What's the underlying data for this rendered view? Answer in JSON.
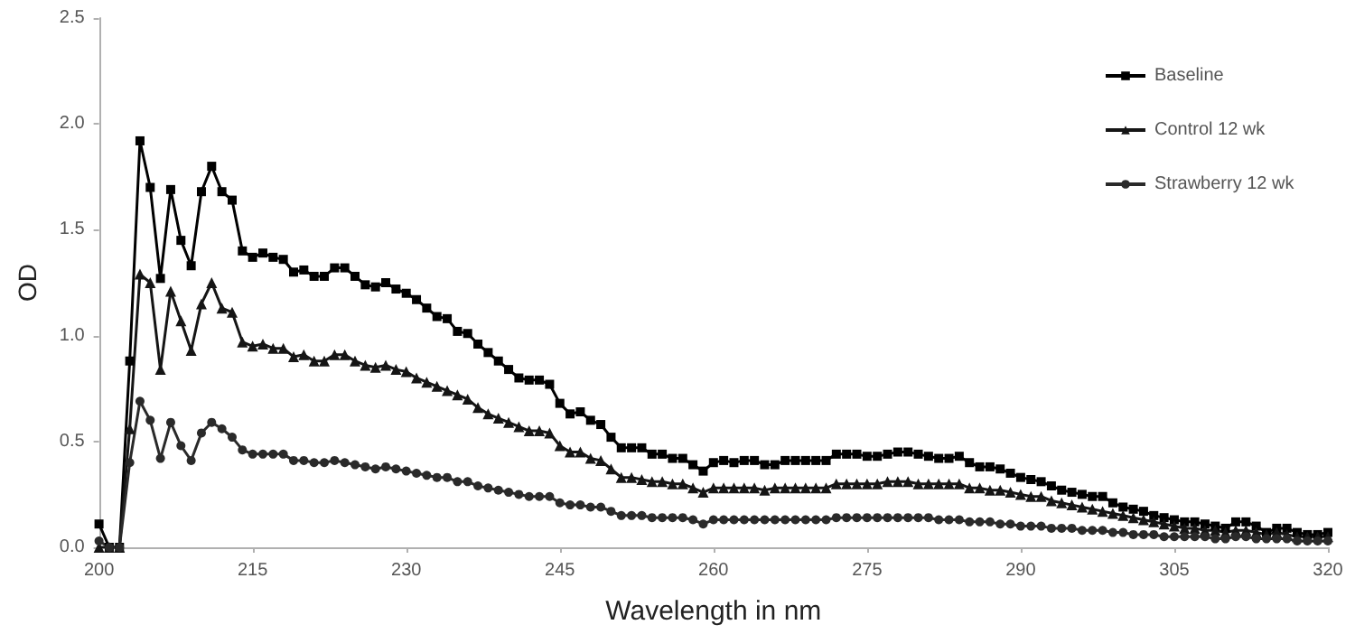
{
  "chart_data": {
    "type": "line",
    "xlabel": "Wavelength in nm",
    "ylabel": "OD",
    "x": [
      200,
      201,
      202,
      203,
      204,
      205,
      206,
      207,
      208,
      209,
      210,
      211,
      212,
      213,
      214,
      215,
      216,
      217,
      218,
      219,
      220,
      221,
      222,
      223,
      224,
      225,
      226,
      227,
      228,
      229,
      230,
      231,
      232,
      233,
      234,
      235,
      236,
      237,
      238,
      239,
      240,
      241,
      242,
      243,
      244,
      245,
      246,
      247,
      248,
      249,
      250,
      251,
      252,
      253,
      254,
      255,
      256,
      257,
      258,
      259,
      260,
      261,
      262,
      263,
      264,
      265,
      266,
      267,
      268,
      269,
      270,
      271,
      272,
      273,
      274,
      275,
      276,
      277,
      278,
      279,
      280,
      281,
      282,
      283,
      284,
      285,
      286,
      287,
      288,
      289,
      290,
      291,
      292,
      293,
      294,
      295,
      296,
      297,
      298,
      299,
      300,
      301,
      302,
      303,
      304,
      305,
      306,
      307,
      308,
      309,
      310,
      311,
      312,
      313,
      314,
      315,
      316,
      317,
      318,
      319,
      320
    ],
    "series": [
      {
        "name": "Baseline",
        "color": "#000000",
        "marker": "square",
        "values": [
          0.11,
          0,
          0,
          0.88,
          1.92,
          1.7,
          1.27,
          1.69,
          1.45,
          1.33,
          1.68,
          1.8,
          1.68,
          1.64,
          1.4,
          1.37,
          1.39,
          1.37,
          1.36,
          1.3,
          1.31,
          1.28,
          1.28,
          1.32,
          1.32,
          1.28,
          1.24,
          1.23,
          1.25,
          1.22,
          1.2,
          1.17,
          1.13,
          1.09,
          1.08,
          1.02,
          1.01,
          0.96,
          0.92,
          0.88,
          0.84,
          0.8,
          0.79,
          0.79,
          0.77,
          0.68,
          0.63,
          0.64,
          0.6,
          0.58,
          0.52,
          0.47,
          0.47,
          0.47,
          0.44,
          0.44,
          0.42,
          0.42,
          0.39,
          0.36,
          0.4,
          0.41,
          0.4,
          0.41,
          0.41,
          0.39,
          0.39,
          0.41,
          0.41,
          0.41,
          0.41,
          0.41,
          0.44,
          0.44,
          0.44,
          0.43,
          0.43,
          0.44,
          0.45,
          0.45,
          0.44,
          0.43,
          0.42,
          0.42,
          0.43,
          0.4,
          0.38,
          0.38,
          0.37,
          0.35,
          0.33,
          0.32,
          0.31,
          0.29,
          0.27,
          0.26,
          0.25,
          0.24,
          0.24,
          0.21,
          0.19,
          0.18,
          0.17,
          0.15,
          0.14,
          0.13,
          0.12,
          0.12,
          0.11,
          0.1,
          0.09,
          0.12,
          0.12,
          0.1,
          0.07,
          0.09,
          0.09,
          0.07,
          0.06,
          0.06,
          0.07
        ]
      },
      {
        "name": "Control 12 wk",
        "color": "#151515",
        "marker": "triangle",
        "values": [
          0,
          0,
          0,
          0.56,
          1.29,
          1.25,
          0.84,
          1.21,
          1.07,
          0.93,
          1.15,
          1.25,
          1.13,
          1.11,
          0.97,
          0.95,
          0.96,
          0.94,
          0.94,
          0.9,
          0.91,
          0.88,
          0.88,
          0.91,
          0.91,
          0.88,
          0.86,
          0.85,
          0.86,
          0.84,
          0.83,
          0.8,
          0.78,
          0.76,
          0.74,
          0.72,
          0.7,
          0.66,
          0.63,
          0.61,
          0.59,
          0.57,
          0.55,
          0.55,
          0.54,
          0.48,
          0.45,
          0.45,
          0.42,
          0.41,
          0.37,
          0.33,
          0.33,
          0.32,
          0.31,
          0.31,
          0.3,
          0.3,
          0.28,
          0.26,
          0.28,
          0.28,
          0.28,
          0.28,
          0.28,
          0.27,
          0.28,
          0.28,
          0.28,
          0.28,
          0.28,
          0.28,
          0.3,
          0.3,
          0.3,
          0.3,
          0.3,
          0.31,
          0.31,
          0.31,
          0.3,
          0.3,
          0.3,
          0.3,
          0.3,
          0.28,
          0.28,
          0.27,
          0.27,
          0.26,
          0.25,
          0.24,
          0.24,
          0.22,
          0.21,
          0.2,
          0.19,
          0.18,
          0.17,
          0.16,
          0.15,
          0.14,
          0.13,
          0.12,
          0.11,
          0.1,
          0.09,
          0.09,
          0.08,
          0.08,
          0.07,
          0.08,
          0.08,
          0.07,
          0.06,
          0.07,
          0.06,
          0.05,
          0.05,
          0.05,
          0.05
        ]
      },
      {
        "name": "Strawberry 12 wk",
        "color": "#2a2a2a",
        "marker": "circle",
        "values": [
          0.03,
          0,
          0,
          0.4,
          0.69,
          0.6,
          0.42,
          0.59,
          0.48,
          0.41,
          0.54,
          0.59,
          0.56,
          0.52,
          0.46,
          0.44,
          0.44,
          0.44,
          0.44,
          0.41,
          0.41,
          0.4,
          0.4,
          0.41,
          0.4,
          0.39,
          0.38,
          0.37,
          0.38,
          0.37,
          0.36,
          0.35,
          0.34,
          0.33,
          0.33,
          0.31,
          0.31,
          0.29,
          0.28,
          0.27,
          0.26,
          0.25,
          0.24,
          0.24,
          0.24,
          0.21,
          0.2,
          0.2,
          0.19,
          0.19,
          0.17,
          0.15,
          0.15,
          0.15,
          0.14,
          0.14,
          0.14,
          0.14,
          0.13,
          0.11,
          0.13,
          0.13,
          0.13,
          0.13,
          0.13,
          0.13,
          0.13,
          0.13,
          0.13,
          0.13,
          0.13,
          0.13,
          0.14,
          0.14,
          0.14,
          0.14,
          0.14,
          0.14,
          0.14,
          0.14,
          0.14,
          0.14,
          0.13,
          0.13,
          0.13,
          0.12,
          0.12,
          0.12,
          0.11,
          0.11,
          0.1,
          0.1,
          0.1,
          0.09,
          0.09,
          0.09,
          0.08,
          0.08,
          0.08,
          0.07,
          0.07,
          0.06,
          0.06,
          0.06,
          0.05,
          0.05,
          0.05,
          0.05,
          0.05,
          0.04,
          0.04,
          0.05,
          0.05,
          0.04,
          0.04,
          0.04,
          0.04,
          0.03,
          0.03,
          0.03,
          0.03
        ]
      }
    ],
    "xlim": [
      200,
      320
    ],
    "xticks": [
      200,
      215,
      230,
      245,
      260,
      275,
      290,
      305,
      320
    ],
    "ylim": [
      0,
      2.5
    ],
    "yticks": [
      {
        "value": 0,
        "label": "0.0"
      },
      {
        "value": 0.5,
        "label": "0.5"
      },
      {
        "value": 1,
        "label": "1.0"
      },
      {
        "value": 1.5,
        "label": "1.5"
      },
      {
        "value": 2,
        "label": "2.0"
      },
      {
        "value": 2.5,
        "label": "2.5"
      }
    ],
    "legend": "top right",
    "grid": false,
    "line_style": "solid"
  }
}
